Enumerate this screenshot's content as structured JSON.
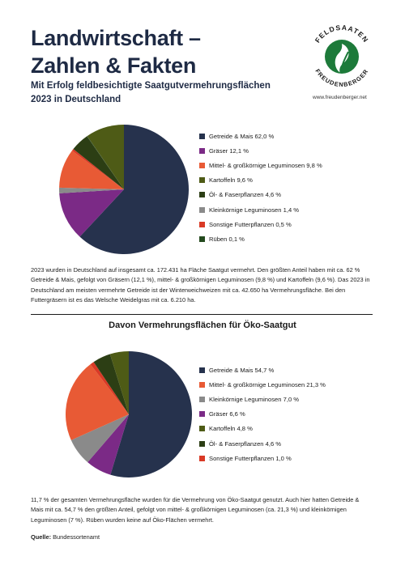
{
  "header": {
    "title_line1": "Landwirtschaft –",
    "title_line2": "Zahlen & Fakten",
    "subtitle_line1": "Mit Erfolg feldbesichtigte Saatgutvermehrungsflächen",
    "subtitle_line2": "2023 in Deutschland"
  },
  "logo": {
    "arc_top": "FELDSAATEN",
    "arc_bottom": "FREUDENBERGER",
    "url": "www.freudenberger.net",
    "color": "#1d7a3a"
  },
  "chart_data": [
    {
      "type": "pie",
      "title": "",
      "series": [
        {
          "label": "Getreide & Mais 62,0 %",
          "value": 62.0,
          "color": "#26324d"
        },
        {
          "label": "Gräser 12,1 %",
          "value": 12.1,
          "color": "#7b2a86"
        },
        {
          "label": "Mittel- & großkörnige Leguminosen 9,8 %",
          "value": 9.8,
          "color": "#e85a35"
        },
        {
          "label": "Kartoffeln 9,6 %",
          "value": 9.6,
          "color": "#4e5b16"
        },
        {
          "label": "Öl- & Faserpflanzen 4,6 %",
          "value": 4.6,
          "color": "#2c3e14"
        },
        {
          "label": "Kleinkörnige Leguminosen 1,4 %",
          "value": 1.4,
          "color": "#8a8a8a"
        },
        {
          "label": "Sonstige Futterpflanzen 0,5 %",
          "value": 0.5,
          "color": "#d93a26"
        },
        {
          "label": "Rüben 0,1 %",
          "value": 0.1,
          "color": "#244a1e"
        }
      ],
      "pie_order": [
        "Getreide & Mais 62,0 %",
        "Gräser 12,1 %",
        "Kleinkörnige Leguminosen 1,4 %",
        "Mittel- & großkörnige Leguminosen 9,8 %",
        "Sonstige Futterpflanzen 0,5 %",
        "Öl- & Faserpflanzen 4,6 %",
        "Rüben 0,1 %",
        "Kartoffeln 9,6 %"
      ]
    },
    {
      "type": "pie",
      "title": "Davon Vermehrungsflächen für Öko-Saatgut",
      "series": [
        {
          "label": "Getreide & Mais 54,7 %",
          "value": 54.7,
          "color": "#26324d"
        },
        {
          "label": "Mittel- & großkörnige Leguminosen 21,3 %",
          "value": 21.3,
          "color": "#e85a35"
        },
        {
          "label": "Kleinkörnige Leguminosen 7,0 %",
          "value": 7.0,
          "color": "#8a8a8a"
        },
        {
          "label": "Gräser 6,6 %",
          "value": 6.6,
          "color": "#7b2a86"
        },
        {
          "label": "Kartoffeln 4,8 %",
          "value": 4.8,
          "color": "#4e5b16"
        },
        {
          "label": "Öl- & Faserpflanzen 4,6 %",
          "value": 4.6,
          "color": "#2c3e14"
        },
        {
          "label": "Sonstige Futterpflanzen 1,0 %",
          "value": 1.0,
          "color": "#d93a26"
        }
      ],
      "pie_order": [
        "Getreide & Mais 54,7 %",
        "Gräser 6,6 %",
        "Kleinkörnige Leguminosen 7,0 %",
        "Mittel- & großkörnige Leguminosen 21,3 %",
        "Sonstige Futterpflanzen 1,0 %",
        "Öl- & Faserpflanzen 4,6 %",
        "Kartoffeln 4,8 %"
      ]
    }
  ],
  "paragraph1": "2023 wurden in Deutschland auf insgesamt ca. 172.431 ha Fläche Saatgut vermehrt. Den größten Anteil haben mit ca. 62 % Getreide & Mais, gefolgt von Gräsern (12,1 %), mittel- & großkörnigen Leguminosen (9,8 %) und Kartoffeln (9,6 %). Das 2023 in Deutschland am meisten vermehrte Getreide ist der Winterweichweizen mit ca. 42.650 ha Vermehrungsfläche. Bei den Futtergräsern ist es das Welsche Weidelgras mit ca. 6.210 ha.",
  "paragraph2": "11,7 % der gesamten Vermehrungsfläche wurden für die Vermehrung von Öko-Saatgut genutzt. Auch hier hatten Getreide & Mais mit ca. 54,7 % den größten Anteil, gefolgt von mittel- & großkörnigen Leguminosen (ca. 21,3 %) und kleinkörnigen Leguminosen (7 %). Rüben wurden keine auf Öko-Flächen vermehrt.",
  "source": {
    "label": "Quelle:",
    "text": " Bundessortenamt"
  }
}
